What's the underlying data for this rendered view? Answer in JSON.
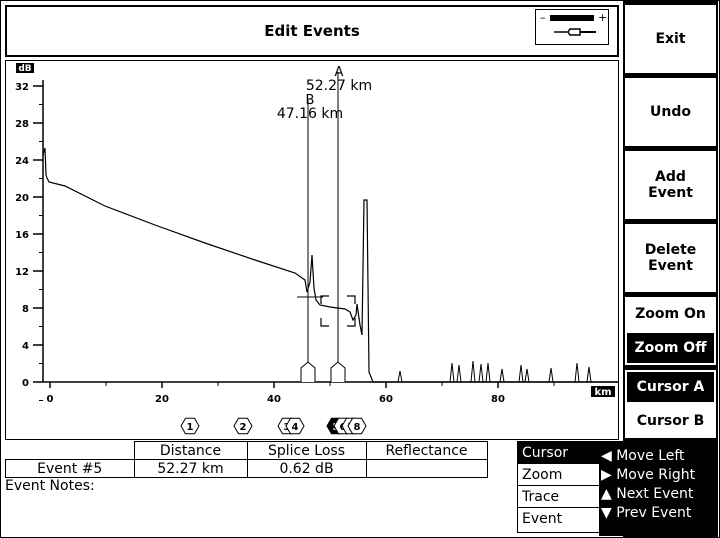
{
  "title": "Edit Events",
  "side_buttons": [
    {
      "label": "Exit"
    },
    {
      "label": "Undo"
    },
    {
      "label": "Add\nEvent"
    },
    {
      "label": "Delete\nEvent"
    },
    {
      "label": "Zoom On"
    },
    {
      "label": "Zoom Off"
    },
    {
      "label": "Cursor A"
    },
    {
      "label": "Cursor B"
    }
  ],
  "chart": {
    "y_unit": "dB",
    "x_unit": "km",
    "y_ticks": [
      "32",
      "28",
      "24",
      "20",
      "16",
      "12",
      "8",
      "4",
      "0"
    ],
    "x_ticks": [
      "0",
      "20",
      "40",
      "60",
      "80"
    ],
    "cursor_a": {
      "label": "A",
      "value": "52.27 km"
    },
    "cursor_b": {
      "label": "B",
      "value": "47.16 km"
    },
    "event_markers": [
      "1",
      "2",
      "3",
      "4",
      "5",
      "6",
      "7",
      "8"
    ]
  },
  "table": {
    "headers": [
      "Distance",
      "Splice Loss",
      "Reflectance"
    ],
    "row": {
      "label": "Event #5",
      "distance": "52.27 km",
      "splice_loss": "0.62 dB",
      "reflectance": ""
    }
  },
  "notes_label": "Event Notes:",
  "menu": [
    "Cursor",
    "Zoom",
    "Trace",
    "Event"
  ],
  "nav": [
    "◀ Move Left",
    "▶ Move Right",
    "▲ Next Event",
    "▼ Prev Event"
  ]
}
